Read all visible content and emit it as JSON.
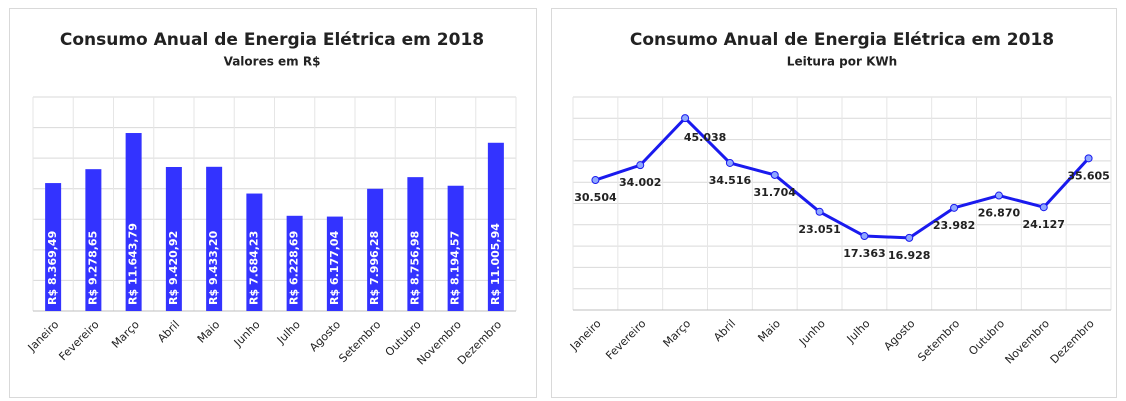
{
  "chart_data": [
    {
      "type": "bar",
      "title": "Consumo Anual de Energia Elétrica em 2018",
      "subtitle": "Valores em R$",
      "categories": [
        "Janeiro",
        "Fevereiro",
        "Março",
        "Abril",
        "Maio",
        "Junho",
        "Julho",
        "Agosto",
        "Setembro",
        "Outubro",
        "Novembro",
        "Dezembro"
      ],
      "values": [
        8369.49,
        9278.65,
        11643.79,
        9420.92,
        9433.2,
        7684.23,
        6228.69,
        6177.04,
        7996.28,
        8756.98,
        8194.57,
        11005.94
      ],
      "value_labels": [
        "R$ 8.369,49",
        "R$ 9.278,65",
        "R$ 11.643,79",
        "R$ 9.420,92",
        "R$ 9.433,20",
        "R$ 7.684,23",
        "R$ 6.228,69",
        "R$ 6.177,04",
        "R$ 7.996,28",
        "R$ 8.756,98",
        "R$ 8.194,57",
        "R$ 11.005,94"
      ],
      "color": "#3333ff",
      "ylim": [
        0,
        14000
      ],
      "yticks": [
        0,
        2000,
        4000,
        6000,
        8000,
        10000,
        12000,
        14000
      ],
      "grid": true
    },
    {
      "type": "line",
      "title": "Consumo Anual de Energia Elétrica em 2018",
      "subtitle": "Leitura por KWh",
      "categories": [
        "Janeiro",
        "Fevereiro",
        "Março",
        "Abril",
        "Maio",
        "Junho",
        "Julho",
        "Agosto",
        "Setembro",
        "Outubro",
        "Novembro",
        "Dezembro"
      ],
      "values": [
        30.504,
        34.002,
        45.038,
        34.516,
        31.704,
        23.051,
        17.363,
        16.928,
        23.982,
        26.87,
        24.127,
        35.605
      ],
      "value_labels": [
        "30.504",
        "34.002",
        "45.038",
        "34.516",
        "31.704",
        "23.051",
        "17.363",
        "16.928",
        "23.982",
        "26.870",
        "24.127",
        "35.605"
      ],
      "color": "#1a1aee",
      "ylim": [
        0,
        50
      ],
      "yticks": [
        0,
        5,
        10,
        15,
        20,
        25,
        30,
        35,
        40,
        45,
        50
      ],
      "grid": true
    }
  ]
}
